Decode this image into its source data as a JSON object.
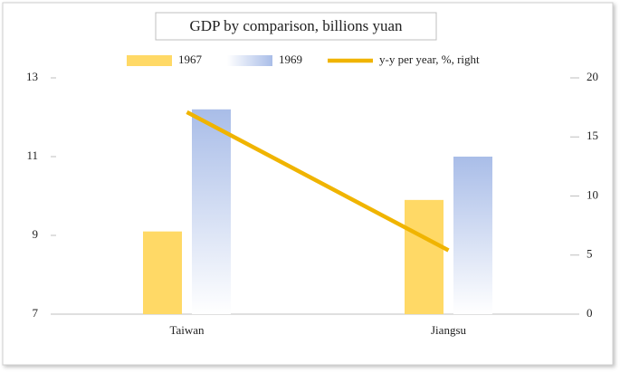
{
  "chart_data": {
    "type": "bar",
    "title": "GDP by comparison, billions yuan",
    "categories": [
      "Taiwan",
      "Jiangsu"
    ],
    "series": [
      {
        "name": "1967",
        "color": "#ffd966",
        "values": [
          9.1,
          9.9
        ]
      },
      {
        "name": "1969",
        "color": "#a9bde8",
        "values": [
          12.2,
          11.0
        ]
      },
      {
        "name": "y-y per year, %, right",
        "type": "line",
        "axis": "y2",
        "color": "#f0b400",
        "values": [
          17.1,
          5.4
        ]
      }
    ],
    "ylim": [
      7,
      13
    ],
    "yticks": [
      7,
      9,
      11,
      13
    ],
    "y2lim": [
      0,
      20
    ],
    "y2ticks": [
      0,
      5,
      10,
      15,
      20
    ],
    "grid": false,
    "legend": "top"
  }
}
